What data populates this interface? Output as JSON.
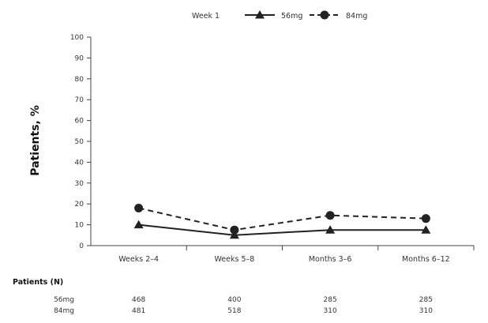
{
  "chart_data": {
    "type": "line",
    "categories": [
      "Weeks 2–4",
      "Weeks 5–8",
      "Months 3–6",
      "Months 6–12"
    ],
    "ylabel": "Patients, %",
    "ylim": [
      0,
      100
    ],
    "yticks": [
      0,
      10,
      20,
      30,
      40,
      50,
      60,
      70,
      80,
      90,
      100
    ],
    "grid": false,
    "legend": {
      "title": "Week 1",
      "placement": "top-center"
    },
    "series": [
      {
        "name": "56mg",
        "values": [
          10,
          5,
          7.5,
          7.5
        ],
        "marker": "triangle",
        "dash": "solid",
        "color": "#222222"
      },
      {
        "name": "84mg",
        "values": [
          18,
          7.5,
          14.5,
          13
        ],
        "marker": "circle",
        "dash": "dashed",
        "color": "#222222"
      }
    ],
    "table": {
      "title": "Patients (N)",
      "rows": [
        {
          "label": "56mg",
          "values": [
            "468",
            "400",
            "285",
            "285"
          ]
        },
        {
          "label": "84mg",
          "values": [
            "481",
            "518",
            "310",
            "310"
          ]
        }
      ]
    }
  }
}
